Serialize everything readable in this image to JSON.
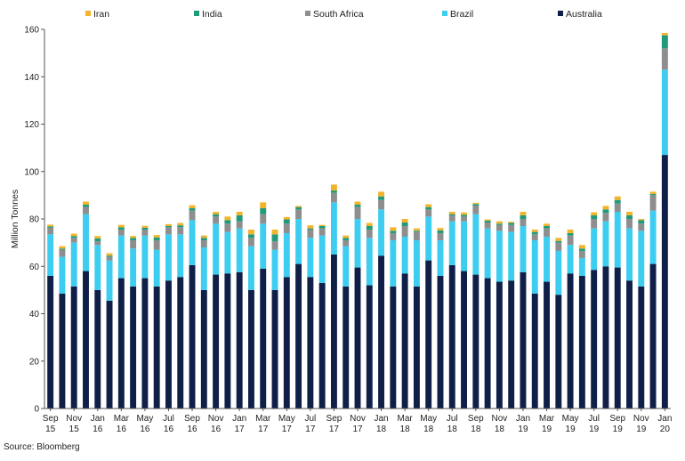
{
  "source": "Source: Bloomberg",
  "chart_data": {
    "type": "bar",
    "stacked": true,
    "ylabel": "Million Tonnes",
    "ylim": [
      0,
      160
    ],
    "yticks": [
      0,
      20,
      40,
      60,
      80,
      100,
      120,
      140,
      160
    ],
    "grid": false,
    "legend_position": "top",
    "x_tick_labels": [
      [
        "Sep",
        "15"
      ],
      [
        "Nov",
        "15"
      ],
      [
        "Jan",
        "16"
      ],
      [
        "Mar",
        "16"
      ],
      [
        "May",
        "16"
      ],
      [
        "Jul",
        "16"
      ],
      [
        "Sep",
        "16"
      ],
      [
        "Nov",
        "16"
      ],
      [
        "Jan",
        "17"
      ],
      [
        "Mar",
        "17"
      ],
      [
        "May",
        "17"
      ],
      [
        "Jul",
        "17"
      ],
      [
        "Sep",
        "17"
      ],
      [
        "Nov",
        "17"
      ],
      [
        "Jan",
        "18"
      ],
      [
        "Mar",
        "18"
      ],
      [
        "May",
        "18"
      ],
      [
        "Jul",
        "18"
      ],
      [
        "Sep",
        "18"
      ],
      [
        "Nov",
        "18"
      ],
      [
        "Jan",
        "19"
      ],
      [
        "Mar",
        "19"
      ],
      [
        "May",
        "19"
      ],
      [
        "Jul",
        "19"
      ],
      [
        "Sep",
        "19"
      ],
      [
        "Nov",
        "19"
      ],
      [
        "Jan",
        "20"
      ]
    ],
    "categories": [
      "Sep 2015",
      "Oct 2015",
      "Nov 2015",
      "Dec 2015",
      "Jan 2016",
      "Feb 2016",
      "Mar 2016",
      "Apr 2016",
      "May 2016",
      "Jun 2016",
      "Jul 2016",
      "Aug 2016",
      "Sep 2016",
      "Oct 2016",
      "Nov 2016",
      "Dec 2016",
      "Jan 2017",
      "Feb 2017",
      "Mar 2017",
      "Apr 2017",
      "May 2017",
      "Jun 2017",
      "Jul 2017",
      "Aug 2017",
      "Sep 2017",
      "Oct 2017",
      "Nov 2017",
      "Dec 2017",
      "Jan 2018",
      "Feb 2018",
      "Mar 2018",
      "Apr 2018",
      "May 2018",
      "Jun 2018",
      "Jul 2018",
      "Aug 2018",
      "Sep 2018",
      "Oct 2018",
      "Nov 2018",
      "Dec 2018",
      "Jan 2019",
      "Feb 2019",
      "Mar 2019",
      "Apr 2019",
      "May 2019",
      "Jun 2019",
      "Jul 2019",
      "Aug 2019",
      "Sep 2019",
      "Oct 2019",
      "Nov 2019",
      "Dec 2019",
      "Jan 2020"
    ],
    "series": [
      {
        "name": "Australia",
        "color": "#0f1f47",
        "values": [
          56,
          48.5,
          51.5,
          58,
          50,
          45.5,
          55,
          51.5,
          55,
          51.5,
          54,
          55.5,
          60.5,
          50,
          56.5,
          57,
          57.5,
          50,
          59,
          50,
          55.5,
          61,
          55.5,
          53,
          65,
          51.5,
          59.5,
          52,
          64.5,
          51.5,
          57,
          51.5,
          62.5,
          56,
          60.5,
          58,
          56.5,
          55,
          53.5,
          54,
          57.5,
          48.5,
          53.5,
          48,
          57,
          56,
          58.5,
          60,
          59.5,
          54,
          51.5,
          61,
          107
        ]
      },
      {
        "name": "Brazil",
        "color": "#3ccdf0",
        "values": [
          17.5,
          15.5,
          18.5,
          24,
          19,
          17,
          18,
          16,
          18,
          15.5,
          19.5,
          18,
          19,
          18,
          21.5,
          17.5,
          18.5,
          18.5,
          19,
          17,
          18.5,
          19,
          16.5,
          20,
          22,
          17,
          20.5,
          20,
          19.5,
          19.5,
          15.5,
          19.5,
          18.5,
          15,
          18.5,
          21,
          25.5,
          21,
          21.5,
          20.5,
          19.5,
          22.5,
          19,
          18.5,
          12,
          7.5,
          17.5,
          19,
          23.5,
          22,
          23.5,
          22.5,
          36
        ]
      },
      {
        "name": "South Africa",
        "color": "#8e8e8e",
        "values": [
          2.8,
          3,
          2,
          3,
          1.5,
          1.5,
          2.5,
          3.5,
          2.5,
          4,
          3,
          3,
          4,
          3,
          3,
          3.5,
          3,
          3.5,
          4,
          3.5,
          4,
          4,
          3.5,
          3,
          4,
          2.5,
          5,
          3.5,
          4,
          3,
          4.5,
          3.5,
          3,
          3,
          2.5,
          2,
          3.5,
          2.5,
          2.5,
          3,
          3,
          2.5,
          3.5,
          3.5,
          4,
          3,
          4,
          3.5,
          3.5,
          4,
          3,
          6.5,
          9
        ]
      },
      {
        "name": "India",
        "color": "#1f9b7c",
        "values": [
          0.5,
          0.5,
          0.8,
          1,
          1.3,
          0.5,
          1,
          1,
          0.8,
          1.2,
          0.5,
          0.8,
          1,
          1,
          1,
          1.5,
          2.5,
          1.5,
          2.5,
          3,
          1.8,
          1,
          0.5,
          1,
          1,
          1,
          1,
          1.5,
          1.5,
          1,
          1.5,
          0.5,
          1,
          1.2,
          0.5,
          0.7,
          0.8,
          0.8,
          0.5,
          0.8,
          1.5,
          1,
          1,
          0.7,
          1,
          1,
          1.5,
          1.5,
          1.5,
          1.5,
          1.5,
          0.5,
          5.5
        ]
      },
      {
        "name": "Iran",
        "color": "#f2b42a",
        "values": [
          0.8,
          1,
          1,
          1.3,
          1,
          1,
          1,
          0.8,
          0.8,
          1,
          0.8,
          1,
          1.3,
          1,
          1,
          1.5,
          1.5,
          2,
          2.5,
          2,
          1,
          0.5,
          1.3,
          0.5,
          2.5,
          1,
          1.3,
          1.3,
          2,
          1.5,
          1.5,
          1,
          1.2,
          1,
          1,
          1,
          0.5,
          0.5,
          1,
          0.5,
          1.5,
          1,
          1,
          1.3,
          1.5,
          1.5,
          1.3,
          1.5,
          1.5,
          1.5,
          0.5,
          1,
          1
        ]
      }
    ],
    "legend_order": [
      "Iran",
      "India",
      "South Africa",
      "Brazil",
      "Australia"
    ]
  }
}
